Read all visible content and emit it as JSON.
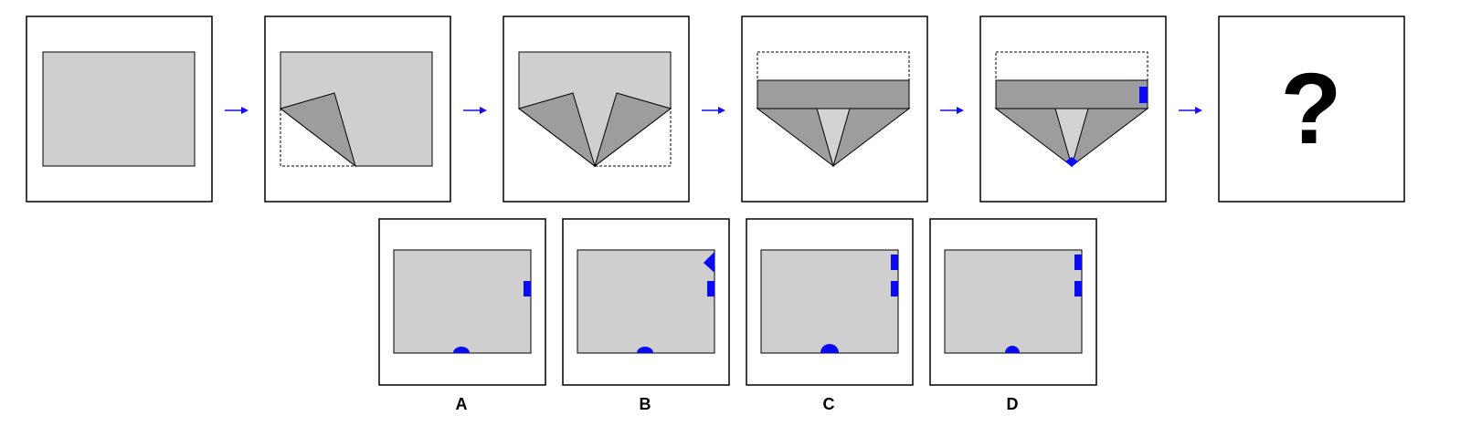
{
  "puzzle": {
    "question_mark": "?",
    "arrow_color": "#1010f0",
    "mark_color": "#0a0af5",
    "paper_color": "#cfcfcf",
    "flap_color": "#9d9d9d"
  },
  "options": [
    {
      "label": "A"
    },
    {
      "label": "B"
    },
    {
      "label": "C"
    },
    {
      "label": "D"
    }
  ]
}
